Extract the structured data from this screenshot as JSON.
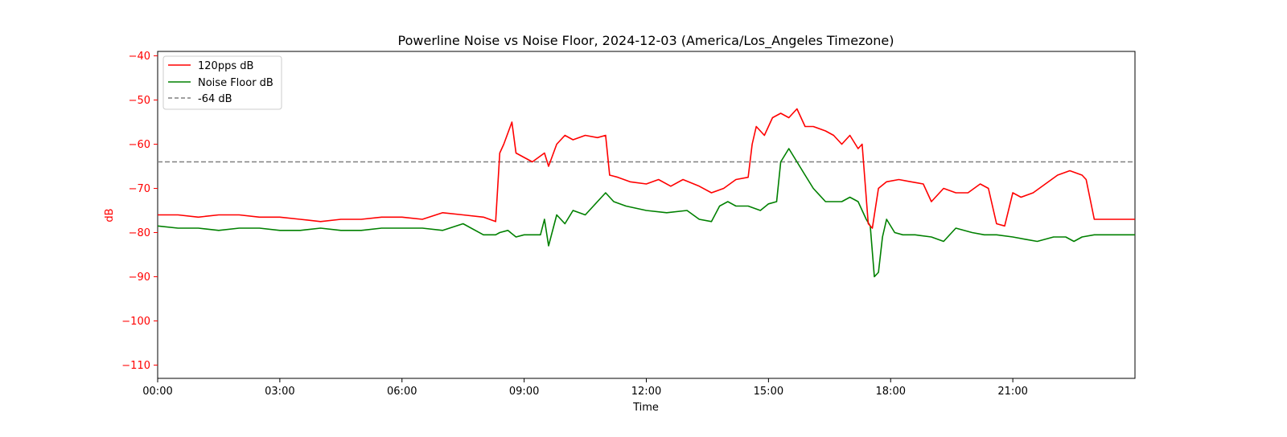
{
  "chart_data": {
    "type": "line",
    "title": "Powerline Noise vs Noise Floor, 2024-12-03 (America/Los_Angeles Timezone)",
    "xlabel": "Time",
    "ylabel": "dB",
    "x_unit": "hours",
    "xlim": [
      0,
      24
    ],
    "ylim": [
      -113,
      -39
    ],
    "x_ticks": [
      {
        "value": 0,
        "label": "00:00"
      },
      {
        "value": 3,
        "label": "03:00"
      },
      {
        "value": 6,
        "label": "06:00"
      },
      {
        "value": 9,
        "label": "09:00"
      },
      {
        "value": 12,
        "label": "12:00"
      },
      {
        "value": 15,
        "label": "15:00"
      },
      {
        "value": 18,
        "label": "18:00"
      },
      {
        "value": 21,
        "label": "21:00"
      }
    ],
    "y_ticks": [
      {
        "value": -40,
        "label": "−40"
      },
      {
        "value": -50,
        "label": "−50"
      },
      {
        "value": -60,
        "label": "−60"
      },
      {
        "value": -70,
        "label": "−70"
      },
      {
        "value": -80,
        "label": "−80"
      },
      {
        "value": -90,
        "label": "−90"
      },
      {
        "value": -100,
        "label": "−100"
      },
      {
        "value": -110,
        "label": "−110"
      }
    ],
    "grid": false,
    "legend_position": "top-left",
    "y_axis_color": "#ff0000",
    "reference_line": {
      "name": "-64 dB",
      "value": -64,
      "color": "#808080",
      "style": "dashed"
    },
    "series": [
      {
        "name": "120pps dB",
        "color": "#ff0000",
        "x": [
          0,
          0.5,
          1,
          1.5,
          2,
          2.5,
          3,
          3.5,
          4,
          4.5,
          5,
          5.5,
          6,
          6.5,
          7,
          7.5,
          8,
          8.3,
          8.4,
          8.5,
          8.7,
          8.8,
          9,
          9.2,
          9.5,
          9.6,
          9.8,
          10,
          10.2,
          10.5,
          10.8,
          11,
          11.1,
          11.3,
          11.6,
          12,
          12.3,
          12.6,
          12.9,
          13.3,
          13.6,
          13.9,
          14.2,
          14.5,
          14.6,
          14.7,
          14.9,
          15.1,
          15.3,
          15.5,
          15.7,
          15.9,
          16.1,
          16.4,
          16.6,
          16.8,
          17,
          17.2,
          17.3,
          17.45,
          17.55,
          17.7,
          17.9,
          18.2,
          18.5,
          18.8,
          19,
          19.3,
          19.6,
          19.9,
          20.2,
          20.4,
          20.6,
          20.8,
          21,
          21.2,
          21.5,
          21.8,
          22.1,
          22.4,
          22.7,
          22.8,
          23,
          23.3,
          23.6,
          24
        ],
        "y": [
          -76,
          -76,
          -76.5,
          -76,
          -76,
          -76.5,
          -76.5,
          -77,
          -77.5,
          -77,
          -77,
          -76.5,
          -76.5,
          -77,
          -75.5,
          -76,
          -76.5,
          -77.5,
          -62,
          -60,
          -55,
          -62,
          -63,
          -64,
          -62,
          -65,
          -60,
          -58,
          -59,
          -58,
          -58.5,
          -58,
          -67,
          -67.5,
          -68.5,
          -69,
          -68,
          -69.5,
          -68,
          -69.5,
          -71,
          -70,
          -68,
          -67.5,
          -60,
          -56,
          -58,
          -54,
          -53,
          -54,
          -52,
          -56,
          -56,
          -57,
          -58,
          -60,
          -58,
          -61,
          -60,
          -78,
          -79,
          -70,
          -68.5,
          -68,
          -68.5,
          -69,
          -73,
          -70,
          -71,
          -71,
          -69,
          -70,
          -78,
          -78.5,
          -71,
          -72,
          -71,
          -69,
          -67,
          -66,
          -67,
          -68,
          -77,
          -77,
          -77,
          -77
        ]
      },
      {
        "name": "Noise Floor dB",
        "color": "#008000",
        "x": [
          0,
          0.5,
          1,
          1.5,
          2,
          2.5,
          3,
          3.5,
          4,
          4.5,
          5,
          5.5,
          6,
          6.5,
          7,
          7.5,
          8,
          8.3,
          8.4,
          8.6,
          8.8,
          9,
          9.2,
          9.4,
          9.5,
          9.6,
          9.8,
          10,
          10.2,
          10.5,
          10.7,
          10.9,
          11,
          11.2,
          11.5,
          12,
          12.5,
          13,
          13.3,
          13.6,
          13.8,
          14,
          14.2,
          14.5,
          14.8,
          15,
          15.2,
          15.3,
          15.5,
          15.7,
          15.9,
          16.1,
          16.4,
          16.8,
          17,
          17.2,
          17.4,
          17.5,
          17.6,
          17.7,
          17.8,
          17.9,
          18.1,
          18.3,
          18.6,
          19,
          19.3,
          19.6,
          20,
          20.3,
          20.6,
          21,
          21.3,
          21.6,
          22,
          22.3,
          22.5,
          22.7,
          23,
          23.5,
          24
        ],
        "y": [
          -78.5,
          -79,
          -79,
          -79.5,
          -79,
          -79,
          -79.5,
          -79.5,
          -79,
          -79.5,
          -79.5,
          -79,
          -79,
          -79,
          -79.5,
          -78,
          -80.5,
          -80.5,
          -80,
          -79.5,
          -81,
          -80.5,
          -80.5,
          -80.5,
          -77,
          -83,
          -76,
          -78,
          -75,
          -76,
          -74,
          -72,
          -71,
          -73,
          -74,
          -75,
          -75.5,
          -75,
          -77,
          -77.5,
          -74,
          -73,
          -74,
          -74,
          -75,
          -73.5,
          -73,
          -64,
          -61,
          -64,
          -67,
          -70,
          -73,
          -73,
          -72,
          -73,
          -77,
          -78.5,
          -90,
          -89,
          -81,
          -77,
          -80,
          -80.5,
          -80.5,
          -81,
          -82,
          -79,
          -80,
          -80.5,
          -80.5,
          -81,
          -81.5,
          -82,
          -81,
          -81,
          -82,
          -81,
          -80.5,
          -80.5,
          -80.5
        ]
      }
    ]
  }
}
